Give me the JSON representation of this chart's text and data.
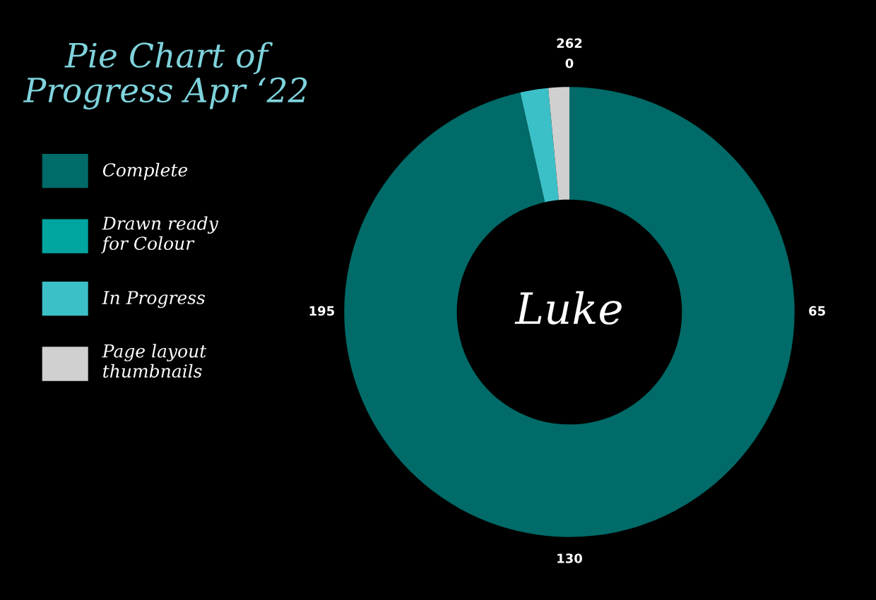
{
  "chart_data": {
    "type": "donut",
    "title": "Pie Chart of\nProgress Apr ‘22",
    "categories": [
      "Complete",
      "Drawn ready\nfor Colour",
      "In Progress",
      "Page layout\nthumbnails"
    ],
    "values": [
      96.5,
      0,
      2,
      1.5
    ],
    "colors": [
      "#006b68",
      "#00a5a0",
      "#3cc0c8",
      "#d0d0d0"
    ],
    "legend": "left",
    "annotations": [
      "Luke",
      "0",
      "65",
      "130",
      "195",
      "262"
    ]
  }
}
